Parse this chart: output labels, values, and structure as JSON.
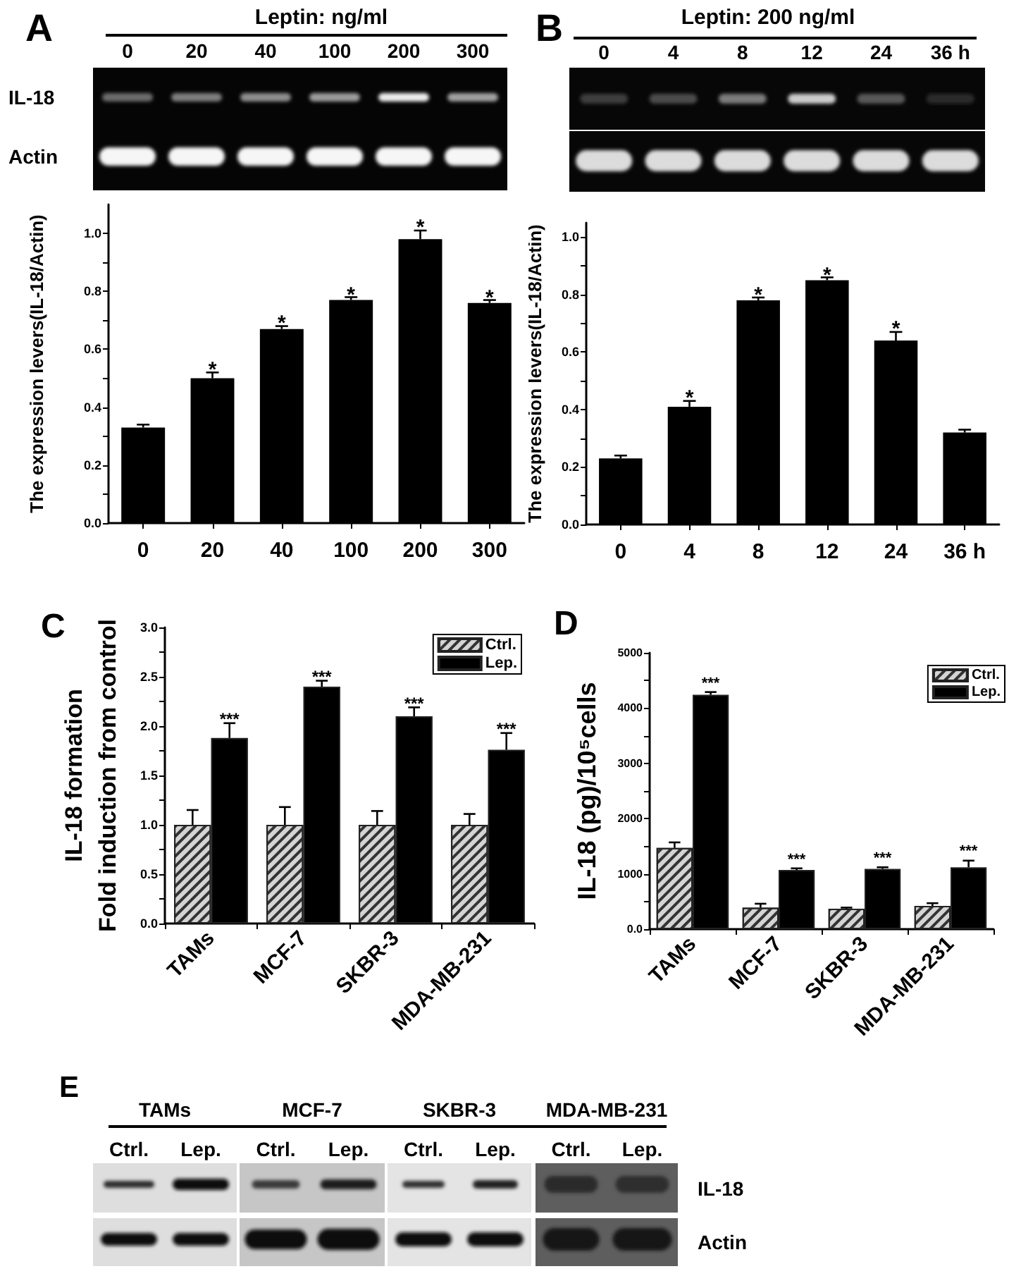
{
  "chart_data": [
    {
      "type": "bar",
      "title": "Leptin: ng/ml",
      "ylabel": "The expression levers(IL-18/Actin)",
      "categories": [
        "0",
        "20",
        "40",
        "100",
        "200",
        "300"
      ],
      "values": [
        0.33,
        0.5,
        0.67,
        0.77,
        0.98,
        0.76
      ],
      "color": "#000000",
      "errors": [
        [
          0.33,
          0.34
        ],
        [
          0.5,
          0.52
        ],
        [
          0.67,
          0.68
        ],
        [
          0.77,
          0.78
        ],
        [
          0.98,
          1.01
        ],
        [
          0.76,
          0.77
        ]
      ],
      "ylim": [
        0,
        1.1
      ],
      "yticks": [
        {
          "value": 0,
          "label": "0.0"
        },
        {
          "value": 0.1,
          "label": null
        },
        0.2,
        {
          "value": 0.3,
          "label": null
        },
        0.4,
        {
          "value": 0.5,
          "label": null
        },
        0.6,
        {
          "value": 0.7,
          "label": null
        },
        0.8,
        {
          "value": 0.9,
          "label": null
        },
        {
          "value": 1,
          "label": "1.0"
        }
      ],
      "annotations": [
        "A",
        "IL-18",
        "Actin",
        {
          "text": "*",
          "x": "20",
          "y": 0.5
        },
        {
          "text": "*",
          "x": "40",
          "y": 0.67
        },
        {
          "text": "*",
          "x": "100",
          "y": 0.77
        },
        {
          "text": "*",
          "x": "200",
          "y": 0.98
        },
        {
          "text": "*",
          "x": "300",
          "y": 0.76
        }
      ]
    },
    {
      "type": "bar",
      "title": "Leptin: 200 ng/ml",
      "ylabel": "The expression levers(IL-18/Actin)",
      "categories": [
        "0",
        "4",
        "8",
        "12",
        "24",
        "36 h"
      ],
      "values": [
        0.23,
        0.41,
        0.78,
        0.85,
        0.64,
        0.32
      ],
      "color": "#000000",
      "errors": [
        [
          0.23,
          0.24
        ],
        [
          0.41,
          0.43
        ],
        [
          0.78,
          0.79
        ],
        [
          0.85,
          0.86
        ],
        [
          0.64,
          0.67
        ],
        [
          0.32,
          0.33
        ]
      ],
      "ylim": [
        0,
        1.05
      ],
      "yticks": [
        {
          "value": 0,
          "label": "0.0"
        },
        {
          "value": 0.1,
          "label": null
        },
        0.2,
        {
          "value": 0.3,
          "label": null
        },
        0.4,
        {
          "value": 0.5,
          "label": null
        },
        0.6,
        {
          "value": 0.7,
          "label": null
        },
        0.8,
        {
          "value": 0.9,
          "label": null
        },
        {
          "value": 1,
          "label": "1.0"
        }
      ],
      "annotations": [
        "B",
        {
          "text": "*",
          "x": "4",
          "y": 0.41
        },
        {
          "text": "*",
          "x": "8",
          "y": 0.78
        },
        {
          "text": "*",
          "x": "12",
          "y": 0.85
        },
        {
          "text": "*",
          "x": "24",
          "y": 0.64
        }
      ]
    },
    {
      "type": "bar",
      "ylabel": "IL-18 formation\nFold induction from control",
      "categories": [
        "TAMs",
        "MCF-7",
        "SKBR-3",
        "MDA-MB-231"
      ],
      "series": [
        {
          "name": "Ctrl.",
          "color": "#d4d4d4",
          "values": [
            1,
            1,
            1,
            1
          ],
          "errors": [
            [
              1,
              1.15
            ],
            [
              1,
              1.18
            ],
            [
              1,
              1.14
            ],
            [
              1,
              1.11
            ]
          ]
        },
        {
          "name": "Lep.",
          "color": "#000000",
          "values": [
            1.88,
            2.4,
            2.1,
            1.76
          ],
          "errors": [
            [
              1.88,
              2.03
            ],
            [
              2.4,
              2.46
            ],
            [
              2.1,
              2.19
            ],
            [
              1.76,
              1.93
            ]
          ]
        }
      ],
      "ylim": [
        0,
        3
      ],
      "yticks": [
        {
          "value": 0,
          "label": "0.0"
        },
        {
          "value": 0.25,
          "label": null
        },
        0.5,
        {
          "value": 0.75,
          "label": null
        },
        {
          "value": 1,
          "label": "1.0"
        },
        {
          "value": 1.25,
          "label": null
        },
        1.5,
        {
          "value": 1.75,
          "label": null
        },
        {
          "value": 2,
          "label": "2.0"
        },
        {
          "value": 2.25,
          "label": null
        },
        2.5,
        {
          "value": 2.75,
          "label": null
        },
        {
          "value": 3,
          "label": "3.0"
        }
      ],
      "legend": "top right",
      "annotations": [
        "C",
        {
          "text": "***",
          "x": "TAMs",
          "y": 1.88
        },
        {
          "text": "***",
          "x": "MCF-7",
          "y": 2.4
        },
        {
          "text": "***",
          "x": "SKBR-3",
          "y": 2.1
        },
        {
          "text": "***",
          "x": "MDA-MB-231",
          "y": 1.76
        }
      ]
    },
    {
      "type": "bar",
      "ylabel": "IL-18 (pg)/10⁵cells",
      "categories": [
        "TAMs",
        "MCF-7",
        "SKBR-3",
        "MDA-MB-231"
      ],
      "series": [
        {
          "name": "Ctrl.",
          "color": "#d4d4d4",
          "values": [
            1470,
            390,
            370,
            420
          ],
          "errors": [
            [
              1470,
              1570
            ],
            [
              390,
              460
            ],
            [
              370,
              390
            ],
            [
              420,
              470
            ]
          ]
        },
        {
          "name": "Lep.",
          "color": "#000000",
          "values": [
            4240,
            1070,
            1090,
            1120
          ],
          "errors": [
            [
              4240,
              4290
            ],
            [
              1070,
              1100
            ],
            [
              1090,
              1120
            ],
            [
              1120,
              1240
            ]
          ]
        }
      ],
      "ylim": [
        0,
        5000
      ],
      "yticks": [
        {
          "value": 0,
          "label": "0.0"
        },
        {
          "value": 500,
          "label": null
        },
        1000,
        {
          "value": 1500,
          "label": null
        },
        2000,
        {
          "value": 2500,
          "label": null
        },
        3000,
        {
          "value": 3500,
          "label": null
        },
        4000,
        {
          "value": 4500,
          "label": null
        },
        5000
      ],
      "legend": "top right",
      "annotations": [
        "D",
        "***",
        "***",
        "***",
        "***"
      ]
    },
    {
      "type": "other",
      "categories": [
        "TAMs",
        "MCF-7",
        "SKBR-3",
        "MDA-MB-231"
      ],
      "annotations": [
        "E",
        "Ctrl.",
        "Lep.",
        "Ctrl.",
        "Lep.",
        "Ctrl.",
        "Lep.",
        "Ctrl.",
        "Lep.",
        "IL-18",
        "Actin"
      ]
    }
  ]
}
